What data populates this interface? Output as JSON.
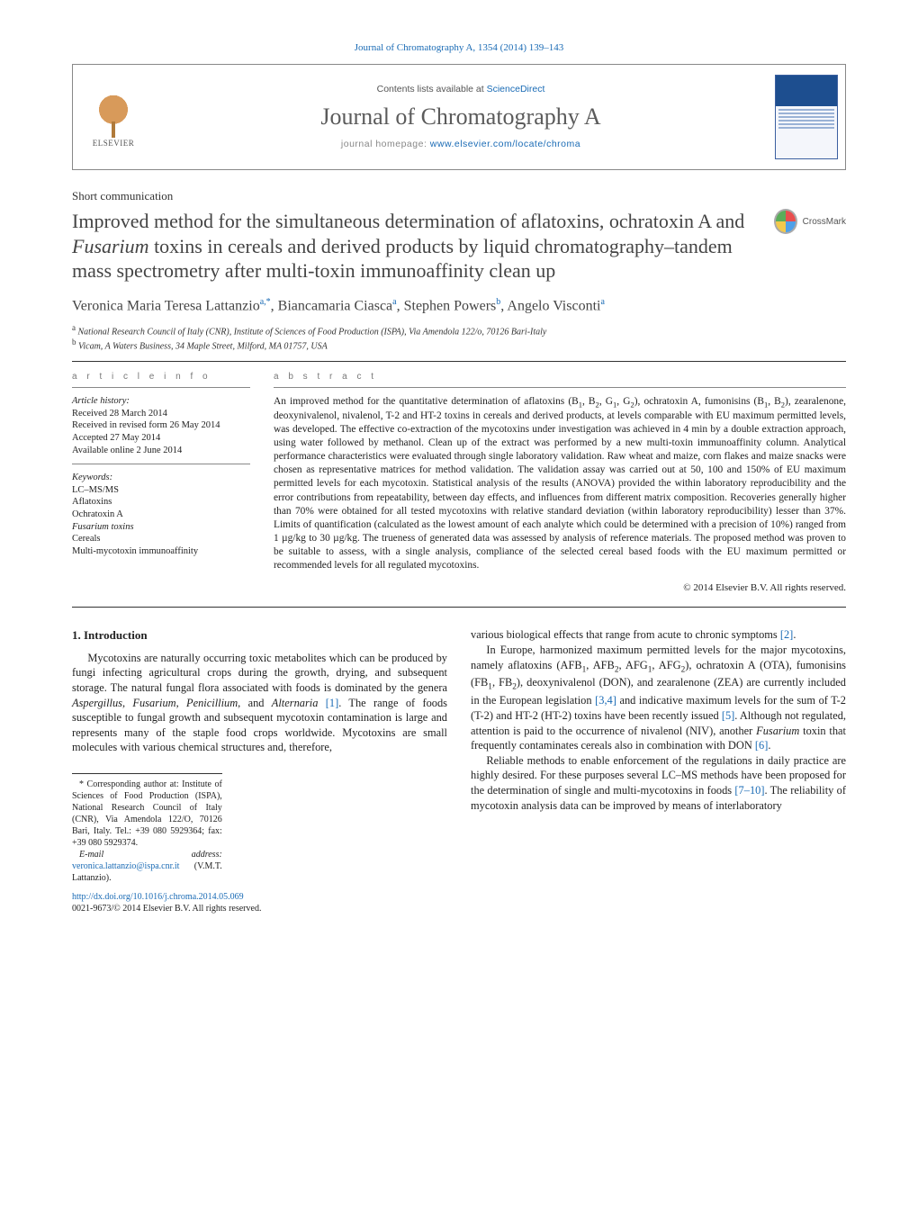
{
  "running_head": "Journal of Chromatography A, 1354 (2014) 139–143",
  "header": {
    "publisher": "ELSEVIER",
    "contents_prefix": "Contents lists available at ",
    "contents_link": "ScienceDirect",
    "journal_name": "Journal of Chromatography A",
    "homepage_prefix": "journal homepage: ",
    "homepage_url": "www.elsevier.com/locate/chroma"
  },
  "crossmark_label": "CrossMark",
  "article": {
    "type": "Short communication",
    "title_html": "Improved method for the simultaneous determination of aflatoxins, ochratoxin A and <em>Fusarium</em> toxins in cereals and derived products by liquid chromatography–tandem mass spectrometry after multi-toxin immunoaffinity clean up",
    "authors_html": "Veronica Maria Teresa Lattanzio<sup>a,*</sup>, Biancamaria Ciasca<sup>a</sup>, Stephen Powers<sup>b</sup>, Angelo Visconti<sup>a</sup>",
    "affiliations": [
      "a National Research Council of Italy (CNR), Institute of Sciences of Food Production (ISPA), Via Amendola 122/o, 70126 Bari-Italy",
      "b Vicam, A Waters Business, 34 Maple Street, Milford, MA 01757, USA"
    ]
  },
  "info": {
    "label": "a r t i c l e   i n f o",
    "history_head": "Article history:",
    "history": [
      "Received 28 March 2014",
      "Received in revised form 26 May 2014",
      "Accepted 27 May 2014",
      "Available online 2 June 2014"
    ],
    "keywords_head": "Keywords:",
    "keywords": [
      "LC–MS/MS",
      "Aflatoxins",
      "Ochratoxin A",
      "Fusarium toxins",
      "Cereals",
      "Multi-mycotoxin immunoaffinity"
    ]
  },
  "abstract": {
    "label": "a b s t r a c t",
    "text_html": "An improved method for the quantitative determination of aflatoxins (B<sub>1</sub>, B<sub>2</sub>, G<sub>1</sub>, G<sub>2</sub>), ochratoxin A, fumonisins (B<sub>1</sub>, B<sub>2</sub>), zearalenone, deoxynivalenol, nivalenol, T-2 and HT-2 toxins in cereals and derived products, at levels comparable with EU maximum permitted levels, was developed. The effective co-extraction of the mycotoxins under investigation was achieved in 4 min by a double extraction approach, using water followed by methanol. Clean up of the extract was performed by a new multi-toxin immunoaffinity column. Analytical performance characteristics were evaluated through single laboratory validation. Raw wheat and maize, corn flakes and maize snacks were chosen as representative matrices for method validation. The validation assay was carried out at 50, 100 and 150% of EU maximum permitted levels for each mycotoxin. Statistical analysis of the results (ANOVA) provided the within laboratory reproducibility and the error contributions from repeatability, between day effects, and influences from different matrix composition. Recoveries generally higher than 70% were obtained for all tested mycotoxins with relative standard deviation (within laboratory reproducibility) lesser than 37%. Limits of quantification (calculated as the lowest amount of each analyte which could be determined with a precision of 10%) ranged from 1 µg/kg to 30 µg/kg. The trueness of generated data was assessed by analysis of reference materials. The proposed method was proven to be suitable to assess, with a single analysis, compliance of the selected cereal based foods with the EU maximum permitted or recommended levels for all regulated mycotoxins.",
    "copyright": "© 2014 Elsevier B.V. All rights reserved."
  },
  "body": {
    "section_heading": "1.  Introduction",
    "p1_html": "Mycotoxins are naturally occurring toxic metabolites which can be produced by fungi infecting agricultural crops during the growth, drying, and subsequent storage. The natural fungal flora associated with foods is dominated by the genera <em>Aspergillus</em>, <em>Fusarium</em>, <em>Penicillium</em>, and <em>Alternaria</em> <a class=\"ref-link\">[1]</a>. The range of foods susceptible to fungal growth and subsequent mycotoxin contamination is large and represents many of the staple food crops worldwide. Mycotoxins are small molecules with various chemical structures and, therefore,",
    "p2_html": "various biological effects that range from acute to chronic symptoms <a class=\"ref-link\">[2]</a>.",
    "p3_html": "In Europe, harmonized maximum permitted levels for the major mycotoxins, namely aflatoxins (AFB<sub>1</sub>, AFB<sub>2</sub>, AFG<sub>1</sub>, AFG<sub>2</sub>), ochratoxin A (OTA), fumonisins (FB<sub>1</sub>, FB<sub>2</sub>), deoxynivalenol (DON), and zearalenone (ZEA) are currently included in the European legislation <a class=\"ref-link\">[3,4]</a> and indicative maximum levels for the sum of T-2 (T-2) and HT-2 (HT-2) toxins have been recently issued <a class=\"ref-link\">[5]</a>. Although not regulated, attention is paid to the occurrence of nivalenol (NIV), another <em>Fusarium</em> toxin that frequently contaminates cereals also in combination with DON <a class=\"ref-link\">[6]</a>.",
    "p4_html": "Reliable methods to enable enforcement of the regulations in daily practice are highly desired. For these purposes several LC–MS methods have been proposed for the determination of single and multi-mycotoxins in foods <a class=\"ref-link\">[7–10]</a>. The reliability of mycotoxin analysis data can be improved by means of interlaboratory"
  },
  "footnote": {
    "corr_html": "* Corresponding author at: Institute of Sciences of Food Production (ISPA), National Research Council of Italy (CNR), Via Amendola 122/O, 70126 Bari, Italy. Tel.: +39 080 5929364; fax: +39 080 5929374.",
    "email_label": "E-mail address:",
    "email": "veronica.lattanzio@ispa.cnr.it",
    "email_person": "(V.M.T. Lattanzio)."
  },
  "doi": {
    "url": "http://dx.doi.org/10.1016/j.chroma.2014.05.069",
    "issn_line": "0021-9673/© 2014 Elsevier B.V. All rights reserved."
  },
  "colors": {
    "link": "#1a6bb5",
    "text": "#222222",
    "muted": "#777777",
    "rule": "#333333"
  }
}
